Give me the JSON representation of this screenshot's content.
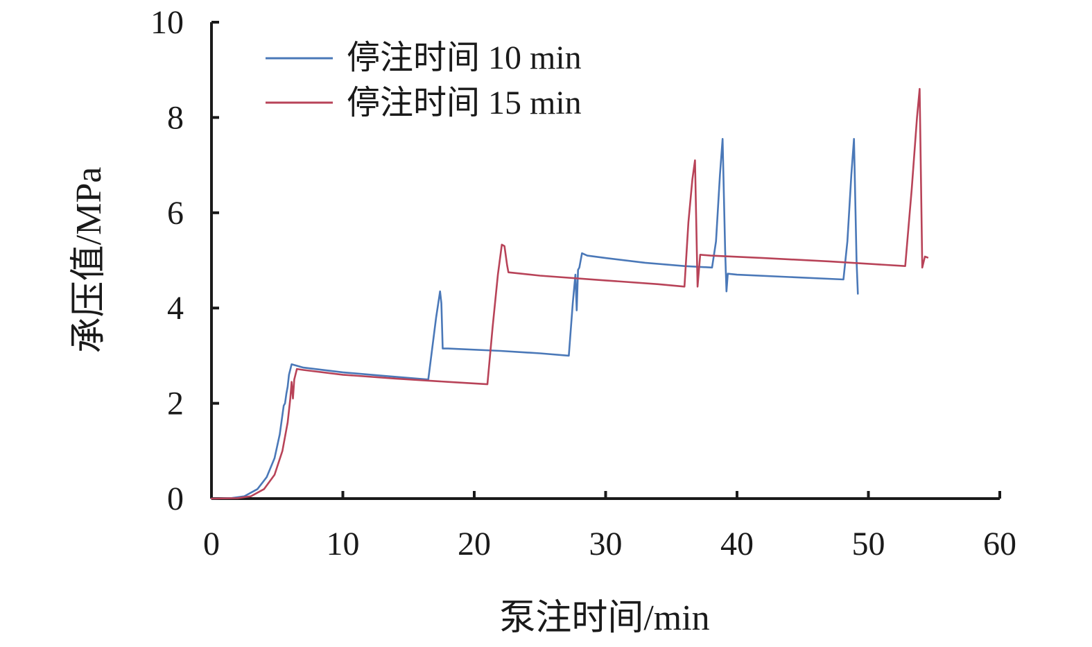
{
  "chart_data": {
    "type": "line",
    "xlabel": "泵注时间/min",
    "ylabel": "承压值/MPa",
    "xlim": [
      0,
      60
    ],
    "ylim": [
      0,
      10
    ],
    "xticks": [
      0,
      10,
      20,
      30,
      40,
      50,
      60
    ],
    "yticks": [
      0,
      2,
      4,
      6,
      8,
      10
    ],
    "grid": false,
    "legend_position": "top-left",
    "series": [
      {
        "name": "停注时间 10 min",
        "color": "#4a78b8",
        "x": [
          0,
          1.5,
          2.5,
          3.5,
          4.2,
          4.8,
          5.2,
          5.5,
          5.6,
          5.7,
          5.8,
          5.9,
          6.1,
          7,
          10,
          13,
          16.5,
          17.1,
          17.4,
          17.5,
          17.6,
          18,
          22,
          25,
          27.2,
          27.5,
          27.7,
          27.8,
          27.9,
          28.0,
          28.2,
          28.6,
          30,
          33,
          36,
          38.1,
          38.4,
          38.7,
          38.9,
          39.1,
          39.2,
          39.3,
          40,
          44,
          48.1,
          48.4,
          48.7,
          48.9,
          49.1,
          49.2
        ],
        "y": [
          0,
          0.01,
          0.05,
          0.2,
          0.45,
          0.85,
          1.35,
          1.95,
          2.0,
          2.2,
          2.35,
          2.6,
          2.82,
          2.75,
          2.65,
          2.58,
          2.5,
          3.8,
          4.35,
          4.1,
          3.15,
          3.15,
          3.1,
          3.05,
          3.0,
          4.1,
          4.7,
          3.95,
          4.8,
          4.85,
          5.15,
          5.1,
          5.05,
          4.95,
          4.88,
          4.85,
          5.4,
          6.8,
          7.55,
          5.2,
          4.35,
          4.72,
          4.7,
          4.65,
          4.6,
          5.4,
          6.8,
          7.55,
          5.0,
          4.3
        ]
      },
      {
        "name": "停注时间 15 min",
        "color": "#b84358",
        "x": [
          0,
          2,
          3,
          4,
          4.8,
          5.4,
          5.8,
          6.0,
          6.1,
          6.2,
          6.3,
          6.5,
          7,
          10,
          14,
          18,
          21.0,
          21.4,
          21.8,
          22.1,
          22.3,
          22.5,
          22.6,
          25,
          30,
          34,
          36.0,
          36.3,
          36.6,
          36.8,
          37.0,
          37.2,
          38,
          42,
          47,
          52.8,
          53.3,
          53.7,
          53.9,
          54.1,
          54.3,
          54.5
        ],
        "y": [
          0,
          0.01,
          0.05,
          0.2,
          0.5,
          1.0,
          1.6,
          2.1,
          2.45,
          2.1,
          2.5,
          2.72,
          2.7,
          2.6,
          2.52,
          2.45,
          2.4,
          3.6,
          4.7,
          5.33,
          5.3,
          4.9,
          4.75,
          4.68,
          4.58,
          4.5,
          4.45,
          5.8,
          6.7,
          7.1,
          4.45,
          5.12,
          5.1,
          5.05,
          4.98,
          4.88,
          6.5,
          8.0,
          8.6,
          4.85,
          5.08,
          5.06
        ]
      }
    ]
  }
}
